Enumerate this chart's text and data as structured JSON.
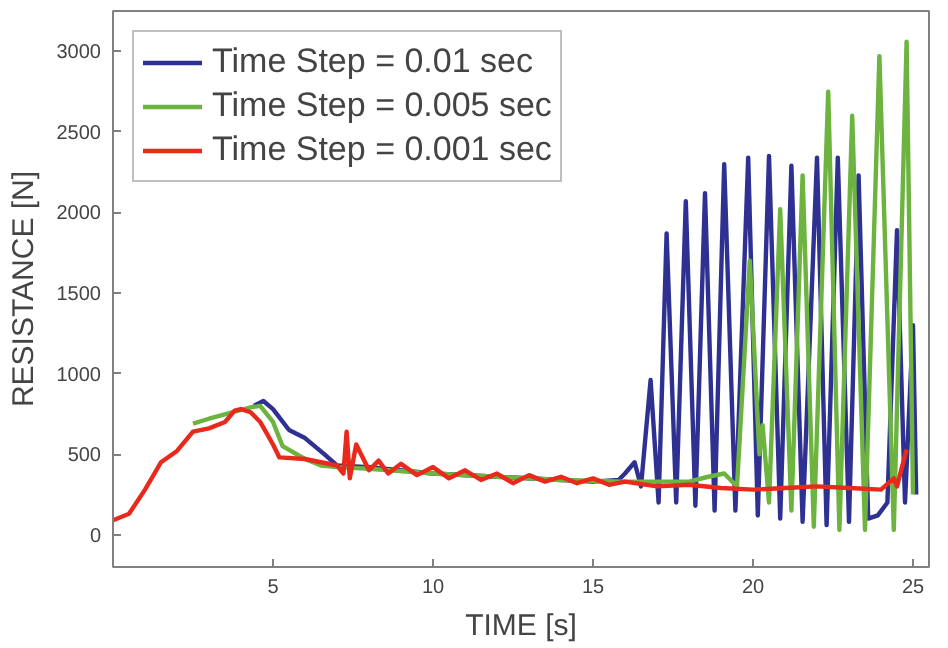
{
  "chart_data": {
    "type": "line",
    "xlabel": "TIME [s]",
    "ylabel": "RESISTANCE [N]",
    "xlim": [
      0,
      25.5
    ],
    "ylim": [
      -200,
      3250
    ],
    "xticks": [
      5,
      10,
      15,
      20,
      25
    ],
    "yticks": [
      0,
      500,
      1000,
      1500,
      2000,
      2500,
      3000
    ],
    "grid": false,
    "legend": "top left",
    "marker": "none",
    "line_style": "solid",
    "series": [
      {
        "name": "Time Step = 0.01 sec",
        "color": "#2e3192",
        "x": [
          4.4,
          4.7,
          5,
          5.5,
          6,
          6.6,
          7,
          8,
          10,
          12,
          14,
          15,
          15.8,
          16,
          16.3,
          16.5,
          16.8,
          17.05,
          17.3,
          17.6,
          17.9,
          18.2,
          18.5,
          18.8,
          19.1,
          19.45,
          19.85,
          20.15,
          20.5,
          20.85,
          21.2,
          21.55,
          22.0,
          22.3,
          22.65,
          23.0,
          23.3,
          23.6,
          23.9,
          24.2,
          24.5,
          24.75,
          25.0,
          25.1
        ],
        "values": [
          800,
          830,
          780,
          650,
          600,
          500,
          430,
          420,
          380,
          360,
          340,
          330,
          340,
          380,
          450,
          300,
          960,
          200,
          1870,
          200,
          2070,
          180,
          2120,
          150,
          2300,
          150,
          2340,
          120,
          2350,
          100,
          2290,
          80,
          2340,
          60,
          2340,
          80,
          2230,
          100,
          120,
          200,
          1890,
          200,
          1300,
          250
        ]
      },
      {
        "name": "Time Step = 0.005 sec",
        "color": "#6cb33f",
        "x": [
          2.5,
          3,
          4.3,
          4.6,
          5,
          5.3,
          6,
          6.5,
          7,
          8,
          10,
          12,
          14,
          16,
          18,
          18.6,
          19.1,
          19.5,
          19.9,
          20.2,
          20.3,
          20.5,
          20.85,
          21.2,
          21.55,
          21.9,
          22.35,
          22.7,
          23.1,
          23.5,
          23.95,
          24.4,
          24.8,
          25.0
        ],
        "values": [
          690,
          720,
          790,
          800,
          700,
          550,
          470,
          430,
          420,
          410,
          380,
          360,
          340,
          330,
          330,
          360,
          380,
          300,
          1700,
          500,
          680,
          200,
          2020,
          150,
          2230,
          50,
          2750,
          30,
          2600,
          30,
          2970,
          30,
          3060,
          250
        ]
      },
      {
        "name": "Time Step = 0.001 sec",
        "color": "#e8291c",
        "x": [
          0,
          0.5,
          1,
          1.5,
          2,
          2.5,
          3,
          3.5,
          3.8,
          4,
          4.3,
          4.6,
          5,
          5.2,
          6,
          7,
          7.2,
          7.3,
          7.4,
          7.6,
          8,
          8.3,
          8.6,
          9,
          9.5,
          10,
          10.5,
          11,
          11.5,
          12,
          12.5,
          13,
          13.5,
          14,
          14.5,
          15,
          15.5,
          16,
          17,
          18,
          19,
          20,
          21,
          22,
          23,
          24,
          24.4,
          24.5,
          24.8
        ],
        "values": [
          90,
          130,
          280,
          450,
          520,
          640,
          660,
          700,
          770,
          780,
          760,
          700,
          560,
          480,
          470,
          430,
          380,
          640,
          350,
          560,
          400,
          460,
          380,
          440,
          370,
          420,
          350,
          400,
          340,
          380,
          320,
          370,
          330,
          360,
          320,
          350,
          310,
          330,
          300,
          310,
          290,
          280,
          290,
          300,
          290,
          280,
          350,
          300,
          530
        ]
      }
    ]
  }
}
